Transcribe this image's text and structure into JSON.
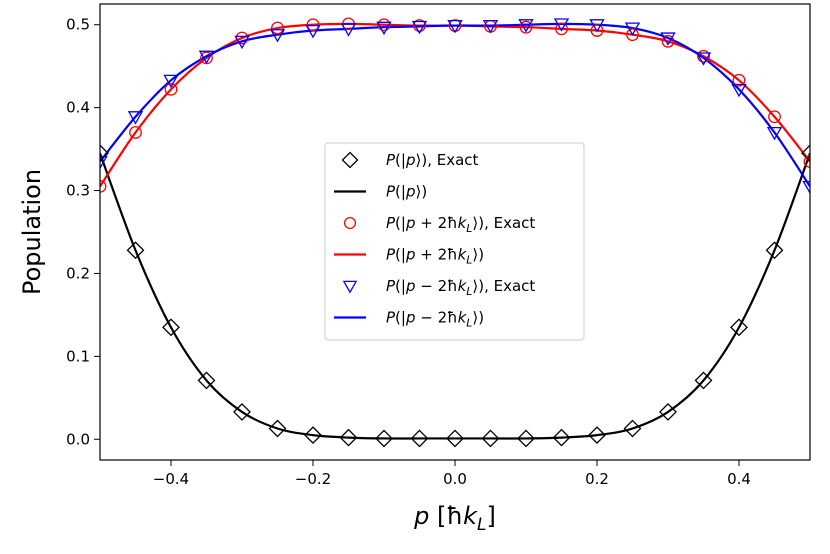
{
  "chart_data": {
    "type": "line",
    "title": "",
    "xlabel": "p [ħk_L]",
    "ylabel": "Population",
    "xlim": [
      -0.5,
      0.5
    ],
    "ylim": [
      -0.025,
      0.525
    ],
    "grid": false,
    "legend_position": "center",
    "x_ticks": [
      -0.4,
      -0.2,
      0.0,
      0.2,
      0.4
    ],
    "x_tick_labels": [
      "−0.4",
      "−0.2",
      "0.0",
      "0.2",
      "0.4"
    ],
    "y_ticks": [
      0.0,
      0.1,
      0.2,
      0.3,
      0.4,
      0.5
    ],
    "y_tick_labels": [
      "0.0",
      "0.1",
      "0.2",
      "0.3",
      "0.4",
      "0.5"
    ],
    "x": [
      -0.5,
      -0.45,
      -0.4,
      -0.35,
      -0.3,
      -0.25,
      -0.2,
      -0.15,
      -0.1,
      -0.05,
      0.0,
      0.05,
      0.1,
      0.15,
      0.2,
      0.25,
      0.3,
      0.35,
      0.4,
      0.45,
      0.5
    ],
    "series": [
      {
        "name": "P(|p⟩), Exact",
        "label_parts": [
          "P",
          "(|",
          "p",
          "⟩), Exact"
        ],
        "kind": "marker",
        "marker": "diamond",
        "color": "#000000",
        "values": [
          0.345,
          0.228,
          0.135,
          0.071,
          0.033,
          0.013,
          0.005,
          0.002,
          0.001,
          0.001,
          0.001,
          0.001,
          0.001,
          0.002,
          0.005,
          0.013,
          0.033,
          0.071,
          0.135,
          0.228,
          0.345
        ]
      },
      {
        "name": "P(|p⟩)",
        "label_parts": [
          "P",
          "(|",
          "p",
          "⟩)"
        ],
        "kind": "line",
        "color": "#000000",
        "values": [
          0.345,
          0.228,
          0.135,
          0.071,
          0.033,
          0.013,
          0.005,
          0.002,
          0.001,
          0.001,
          0.001,
          0.001,
          0.001,
          0.002,
          0.005,
          0.013,
          0.033,
          0.071,
          0.135,
          0.228,
          0.345
        ]
      },
      {
        "name": "P(|p + 2ħk_L⟩), Exact",
        "label_parts": [
          "P",
          "(|",
          "p",
          " + 2ħ",
          "k",
          "L",
          "⟩), Exact"
        ],
        "kind": "marker",
        "marker": "circle",
        "color": "#ff0000",
        "values": [
          0.305,
          0.37,
          0.422,
          0.46,
          0.484,
          0.496,
          0.5,
          0.501,
          0.5,
          0.499,
          0.499,
          0.498,
          0.497,
          0.495,
          0.493,
          0.488,
          0.48,
          0.462,
          0.433,
          0.389,
          0.335
        ]
      },
      {
        "name": "P(|p + 2ħk_L⟩)",
        "label_parts": [
          "P",
          "(|",
          "p",
          " + 2ħ",
          "k",
          "L",
          "⟩)"
        ],
        "kind": "line",
        "color": "#ff0000",
        "values": [
          0.305,
          0.37,
          0.422,
          0.46,
          0.484,
          0.496,
          0.5,
          0.501,
          0.5,
          0.499,
          0.499,
          0.498,
          0.497,
          0.495,
          0.493,
          0.488,
          0.48,
          0.462,
          0.433,
          0.389,
          0.335
        ]
      },
      {
        "name": "P(|p − 2ħk_L⟩), Exact",
        "label_parts": [
          "P",
          "(|",
          "p",
          " − 2ħ",
          "k",
          "L",
          "⟩), Exact"
        ],
        "kind": "marker",
        "marker": "triangle-down",
        "color": "#0000ff",
        "values": [
          0.335,
          0.389,
          0.433,
          0.462,
          0.48,
          0.488,
          0.493,
          0.495,
          0.497,
          0.498,
          0.499,
          0.499,
          0.5,
          0.501,
          0.5,
          0.496,
          0.484,
          0.46,
          0.422,
          0.37,
          0.305
        ]
      },
      {
        "name": "P(|p − 2ħk_L⟩)",
        "label_parts": [
          "P",
          "(|",
          "p",
          " − 2ħ",
          "k",
          "L",
          "⟩)"
        ],
        "kind": "line",
        "color": "#0000ff",
        "values": [
          0.335,
          0.389,
          0.433,
          0.462,
          0.48,
          0.488,
          0.493,
          0.495,
          0.497,
          0.498,
          0.499,
          0.499,
          0.5,
          0.501,
          0.5,
          0.496,
          0.484,
          0.46,
          0.422,
          0.37,
          0.305
        ]
      }
    ]
  }
}
